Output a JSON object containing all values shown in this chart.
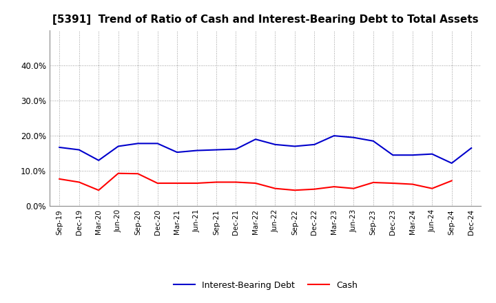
{
  "title": "[5391]  Trend of Ratio of Cash and Interest-Bearing Debt to Total Assets",
  "labels": [
    "Sep-19",
    "Dec-19",
    "Mar-20",
    "Jun-20",
    "Sep-20",
    "Dec-20",
    "Mar-21",
    "Jun-21",
    "Sep-21",
    "Dec-21",
    "Mar-22",
    "Jun-22",
    "Sep-22",
    "Dec-22",
    "Mar-23",
    "Jun-23",
    "Sep-23",
    "Dec-23",
    "Mar-24",
    "Jun-24",
    "Sep-24",
    "Dec-24"
  ],
  "cash": [
    0.077,
    0.068,
    0.045,
    0.093,
    0.092,
    0.065,
    0.065,
    0.065,
    0.068,
    0.068,
    0.065,
    0.05,
    0.045,
    0.048,
    0.055,
    0.05,
    0.067,
    0.065,
    0.062,
    0.05,
    0.072,
    null
  ],
  "ibd": [
    0.167,
    0.16,
    0.13,
    0.17,
    0.178,
    0.178,
    0.153,
    0.158,
    0.16,
    0.162,
    0.19,
    0.175,
    0.17,
    0.175,
    0.2,
    0.195,
    0.185,
    0.145,
    0.145,
    0.148,
    0.122,
    0.165
  ],
  "cash_color": "#ff0000",
  "ibd_color": "#0000cc",
  "ylim": [
    0.0,
    0.5
  ],
  "yticks": [
    0.0,
    0.1,
    0.2,
    0.3,
    0.4
  ],
  "background_color": "#ffffff",
  "grid_color": "#999999",
  "title_fontsize": 11,
  "legend_cash": "Cash",
  "legend_ibd": "Interest-Bearing Debt"
}
